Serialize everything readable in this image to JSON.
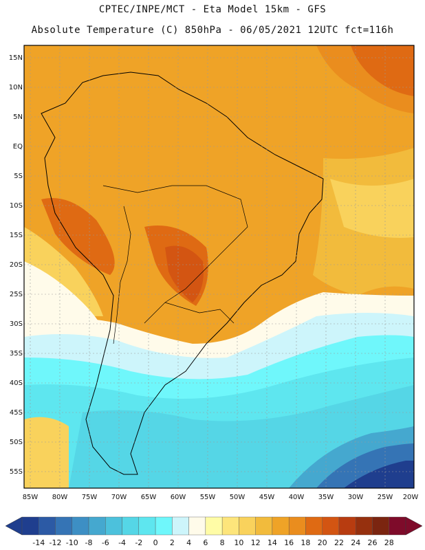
{
  "header": {
    "line1": "CPTEC/INPE/MCT -  Eta Model 15km - GFS",
    "line2": "Absolute Temperature (C) 850hPa - 06/05/2021 12UTC fct=116h"
  },
  "map": {
    "lat_labels": [
      "15N",
      "10N",
      "5N",
      "EQ",
      "5S",
      "10S",
      "15S",
      "20S",
      "25S",
      "30S",
      "35S",
      "40S",
      "45S",
      "50S",
      "55S"
    ],
    "lon_labels": [
      "85W",
      "80W",
      "75W",
      "70W",
      "65W",
      "60W",
      "55W",
      "50W",
      "45W",
      "40W",
      "35W",
      "30W",
      "25W",
      "20W"
    ]
  },
  "colorbar": {
    "labels": [
      "-14",
      "-12",
      "-10",
      "-8",
      "-6",
      "-4",
      "-2",
      "0",
      "2",
      "4",
      "6",
      "8",
      "10",
      "12",
      "14",
      "16",
      "18",
      "20",
      "22",
      "24",
      "26",
      "28"
    ],
    "colors": [
      "#1f3e8e",
      "#2c5aa5",
      "#3574b5",
      "#3d8fc4",
      "#45a8cf",
      "#4cc1dc",
      "#55d6e6",
      "#5ee6ef",
      "#6ff7fb",
      "#cdf5fb",
      "#fffbea",
      "#fffca6",
      "#fde57b",
      "#f9d25c",
      "#f2bb3c",
      "#efa327",
      "#ea8d1e",
      "#df6a13",
      "#d35512",
      "#b83c10",
      "#96300e",
      "#7b2510",
      "#7e0b2a"
    ]
  }
}
